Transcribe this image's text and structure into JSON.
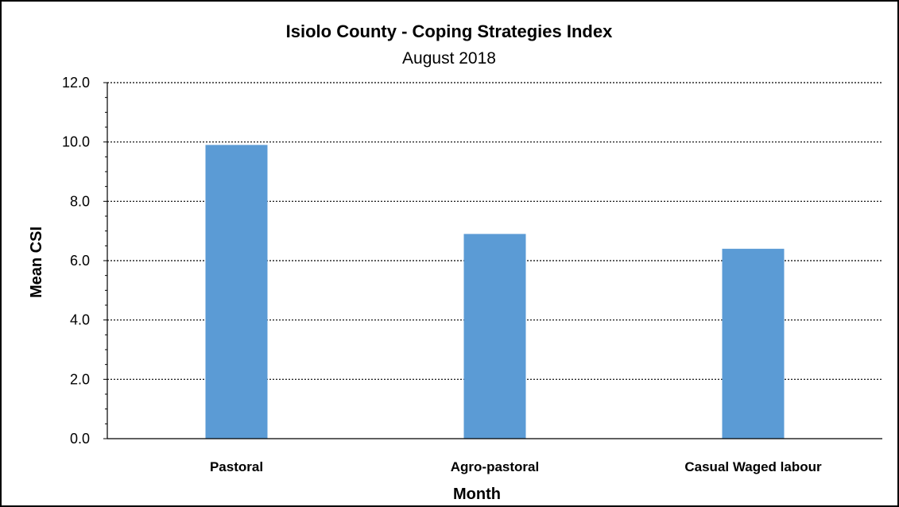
{
  "chart_data": {
    "type": "bar",
    "title": "Isiolo County - Coping Strategies Index",
    "subtitle": "August 2018",
    "xlabel": "Month",
    "ylabel": "Mean CSI",
    "categories": [
      "Pastoral",
      "Agro-pastoral",
      "Casual Waged labour"
    ],
    "values": [
      9.9,
      6.9,
      6.4
    ],
    "ylim": [
      0,
      12
    ],
    "yticks": [
      "0.0",
      "2.0",
      "4.0",
      "6.0",
      "8.0",
      "10.0",
      "12.0"
    ],
    "grid": "dotted-horizontal",
    "legend": "none",
    "bar_color": "#5b9bd5"
  }
}
